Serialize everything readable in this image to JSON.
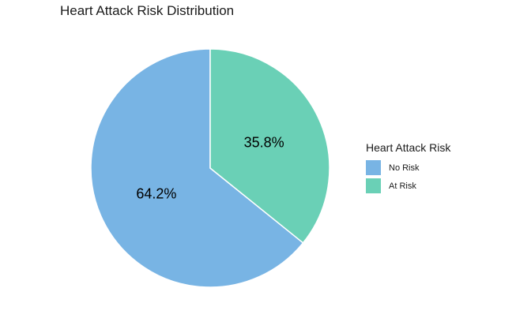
{
  "chart_data": {
    "type": "pie",
    "title": "Heart Attack Risk Distribution",
    "legend_title": "Heart Attack Risk",
    "legend_position": "right",
    "slices": [
      {
        "label": "No Risk",
        "value": 64.2,
        "display": "64.2%",
        "color": "#78B4E4"
      },
      {
        "label": "At Risk",
        "value": 35.8,
        "display": "35.8%",
        "color": "#6AD0B6"
      }
    ]
  }
}
